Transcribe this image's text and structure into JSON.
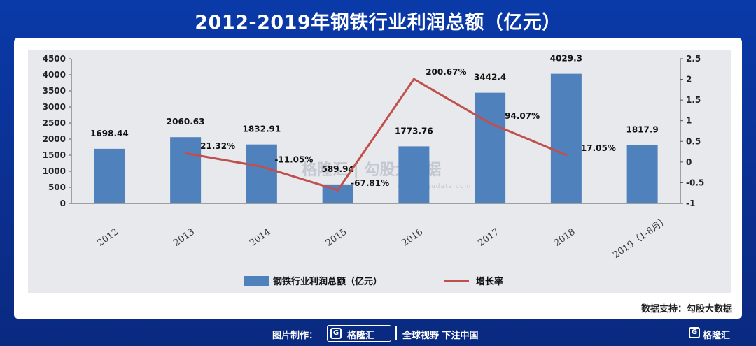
{
  "title": "2012-2019年钢铁行业利润总额（亿元）",
  "source": "数据支持：勾股大数据",
  "watermark": {
    "brand": "格隆汇 | 勾股大数据",
    "url": "www.gogudata.com"
  },
  "footer": {
    "credit": "图片制作：",
    "brand": "格隆汇",
    "slogan": "全球视野  下注中国",
    "corner_brand": "格隆汇"
  },
  "colors": {
    "bar": "#4f81bd",
    "line": "#c0504d",
    "background": "#0b3399"
  },
  "chart_data": {
    "type": "bar",
    "categories": [
      "2012",
      "2013",
      "2014",
      "2015",
      "2016",
      "2017",
      "2018",
      "2019（1-8月）"
    ],
    "series": [
      {
        "name": "钢铁行业利润总额（亿元）",
        "type": "bar",
        "axis": "left",
        "values": [
          1698.44,
          2060.63,
          1832.91,
          589.94,
          1773.76,
          3442.4,
          4029.3,
          1817.9
        ],
        "labels": [
          "1698.44",
          "2060.63",
          "1832.91",
          "589.94",
          "1773.76",
          "3442.4",
          "4029.3",
          "1817.9"
        ]
      },
      {
        "name": "增长率",
        "type": "line",
        "axis": "right",
        "values": [
          null,
          0.2132,
          -0.1105,
          -0.6781,
          2.0067,
          0.9407,
          0.1705,
          null
        ],
        "labels": [
          "",
          "21.32%",
          "-11.05%",
          "-67.81%",
          "200.67%",
          "94.07%",
          "17.05%",
          ""
        ]
      }
    ],
    "y_left": {
      "ylim": [
        0,
        4500
      ],
      "ticks": [
        "0",
        "500",
        "1000",
        "1500",
        "2000",
        "2500",
        "3000",
        "3500",
        "4000",
        "4500"
      ]
    },
    "y_right": {
      "ylim": [
        -1,
        2.5
      ],
      "ticks": [
        "-1",
        "-0.5",
        "0",
        "0.5",
        "1",
        "1.5",
        "2",
        "2.5"
      ]
    },
    "legend_position": "bottom",
    "grid": false
  }
}
